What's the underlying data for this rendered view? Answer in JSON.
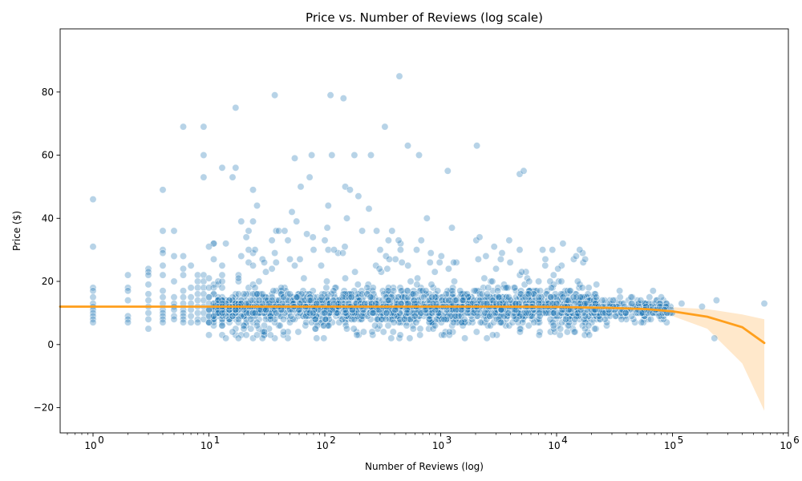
{
  "chart_data": {
    "type": "scatter",
    "title": "Price vs. Number of Reviews (log scale)",
    "xlabel": "Number of Reviews (log)",
    "ylabel": "Price ($)",
    "x_scale": "log",
    "xlim": [
      0.52,
      1000000
    ],
    "ylim": [
      -28,
      100
    ],
    "x_ticks": [
      {
        "value": 1,
        "base": "10",
        "exp": "0"
      },
      {
        "value": 10,
        "base": "10",
        "exp": "1"
      },
      {
        "value": 100,
        "base": "10",
        "exp": "2"
      },
      {
        "value": 1000,
        "base": "10",
        "exp": "3"
      },
      {
        "value": 10000,
        "base": "10",
        "exp": "4"
      },
      {
        "value": 100000,
        "base": "10",
        "exp": "5"
      },
      {
        "value": 1000000,
        "base": "10",
        "exp": "6"
      }
    ],
    "y_ticks": [
      {
        "value": -20,
        "label": "−20"
      },
      {
        "value": 0,
        "label": "0"
      },
      {
        "value": 20,
        "label": "20"
      },
      {
        "value": 40,
        "label": "40"
      },
      {
        "value": 60,
        "label": "60"
      },
      {
        "value": 80,
        "label": "80"
      }
    ],
    "grid": false,
    "legend": "none",
    "colors": {
      "points": "#1f77b4",
      "fit_line": "#ff9f1c",
      "ci_band": "#ffe4c2"
    },
    "points": [
      [
        1,
        46
      ],
      [
        1,
        31
      ],
      [
        1,
        18
      ],
      [
        1,
        17
      ],
      [
        1,
        15
      ],
      [
        1,
        13
      ],
      [
        1,
        12
      ],
      [
        1,
        11
      ],
      [
        1,
        10
      ],
      [
        1,
        9
      ],
      [
        1,
        8
      ],
      [
        1,
        7
      ],
      [
        2,
        22
      ],
      [
        2,
        18
      ],
      [
        2,
        17
      ],
      [
        2,
        14
      ],
      [
        2,
        9
      ],
      [
        2,
        8
      ],
      [
        2,
        7
      ],
      [
        3,
        24
      ],
      [
        3,
        23
      ],
      [
        3,
        22
      ],
      [
        3,
        19
      ],
      [
        3,
        16
      ],
      [
        3,
        14
      ],
      [
        3,
        12
      ],
      [
        3,
        10
      ],
      [
        3,
        8
      ],
      [
        3,
        5
      ],
      [
        4,
        49
      ],
      [
        4,
        36
      ],
      [
        4,
        30
      ],
      [
        4,
        29
      ],
      [
        4,
        25
      ],
      [
        4,
        22
      ],
      [
        4,
        17
      ],
      [
        4,
        15
      ],
      [
        4,
        13
      ],
      [
        4,
        11
      ],
      [
        4,
        10
      ],
      [
        4,
        9
      ],
      [
        4,
        8
      ],
      [
        4,
        7
      ],
      [
        5,
        36
      ],
      [
        5,
        28
      ],
      [
        5,
        20
      ],
      [
        5,
        15
      ],
      [
        5,
        13
      ],
      [
        5,
        12
      ],
      [
        5,
        11
      ],
      [
        5,
        9
      ],
      [
        5,
        8
      ],
      [
        6,
        69
      ],
      [
        6,
        28
      ],
      [
        6,
        24
      ],
      [
        6,
        22
      ],
      [
        6,
        17
      ],
      [
        6,
        15
      ],
      [
        6,
        13
      ],
      [
        6,
        11
      ],
      [
        6,
        10
      ],
      [
        6,
        9
      ],
      [
        6,
        8
      ],
      [
        6,
        7
      ],
      [
        7,
        25
      ],
      [
        7,
        18
      ],
      [
        7,
        15
      ],
      [
        7,
        13
      ],
      [
        7,
        11
      ],
      [
        7,
        9
      ],
      [
        7,
        7
      ],
      [
        8,
        22
      ],
      [
        8,
        20
      ],
      [
        8,
        18
      ],
      [
        8,
        16
      ],
      [
        8,
        14
      ],
      [
        8,
        12
      ],
      [
        8,
        10
      ],
      [
        8,
        8
      ],
      [
        8,
        7
      ],
      [
        9,
        69
      ],
      [
        9,
        60
      ],
      [
        9,
        53
      ],
      [
        9,
        22
      ],
      [
        9,
        20
      ],
      [
        9,
        18
      ],
      [
        9,
        16
      ],
      [
        9,
        14
      ],
      [
        9,
        12
      ],
      [
        9,
        10
      ],
      [
        9,
        8
      ],
      [
        10,
        31
      ],
      [
        10,
        21
      ],
      [
        10,
        18
      ],
      [
        10,
        15
      ],
      [
        10,
        13
      ],
      [
        10,
        11
      ],
      [
        10,
        9
      ],
      [
        10,
        7
      ],
      [
        13,
        56
      ],
      [
        13,
        22
      ],
      [
        13,
        6
      ],
      [
        14,
        2
      ],
      [
        16,
        53
      ],
      [
        17,
        56
      ],
      [
        17,
        75
      ],
      [
        19,
        39
      ],
      [
        19,
        28
      ],
      [
        20,
        5
      ],
      [
        22,
        36
      ],
      [
        22,
        30
      ],
      [
        24,
        49
      ],
      [
        24,
        39
      ],
      [
        26,
        44
      ],
      [
        29,
        27
      ],
      [
        30,
        26
      ],
      [
        35,
        24
      ],
      [
        37,
        79
      ],
      [
        38,
        36
      ],
      [
        40,
        36
      ],
      [
        45,
        36
      ],
      [
        50,
        27
      ],
      [
        52,
        42
      ],
      [
        55,
        59
      ],
      [
        57,
        39
      ],
      [
        62,
        50
      ],
      [
        66,
        21
      ],
      [
        70,
        35
      ],
      [
        74,
        53
      ],
      [
        77,
        60
      ],
      [
        79,
        34
      ],
      [
        85,
        2
      ],
      [
        100,
        33
      ],
      [
        105,
        37
      ],
      [
        107,
        44
      ],
      [
        112,
        79
      ],
      [
        115,
        60
      ],
      [
        120,
        30
      ],
      [
        145,
        78
      ],
      [
        150,
        50
      ],
      [
        155,
        40
      ],
      [
        165,
        49
      ],
      [
        180,
        60
      ],
      [
        195,
        47
      ],
      [
        210,
        36
      ],
      [
        240,
        43
      ],
      [
        250,
        60
      ],
      [
        280,
        36
      ],
      [
        300,
        30
      ],
      [
        330,
        69
      ],
      [
        360,
        27
      ],
      [
        380,
        36
      ],
      [
        440,
        85
      ],
      [
        450,
        30
      ],
      [
        520,
        63
      ],
      [
        620,
        30
      ],
      [
        650,
        60
      ],
      [
        680,
        33
      ],
      [
        760,
        40
      ],
      [
        1150,
        55
      ],
      [
        1250,
        37
      ],
      [
        2050,
        63
      ],
      [
        3000,
        24
      ],
      [
        3300,
        27
      ],
      [
        3900,
        33
      ],
      [
        4800,
        54
      ],
      [
        5200,
        55
      ],
      [
        5800,
        20
      ],
      [
        7000,
        20
      ],
      [
        8000,
        27
      ],
      [
        9000,
        18
      ],
      [
        11000,
        20
      ],
      [
        13000,
        17
      ],
      [
        16000,
        15
      ],
      [
        22000,
        15
      ],
      [
        35000,
        17
      ],
      [
        44000,
        15
      ],
      [
        54000,
        7
      ],
      [
        68000,
        17
      ],
      [
        80000,
        15
      ],
      [
        90000,
        10
      ],
      [
        120000,
        13
      ],
      [
        180000,
        12
      ],
      [
        230000,
        2
      ],
      [
        240000,
        14
      ],
      [
        620000,
        13
      ]
    ],
    "fit_x": [
      0.52,
      1,
      3,
      10,
      30,
      100,
      300,
      1000,
      3000,
      10000,
      30000,
      60000,
      100000,
      200000,
      400000,
      620000
    ],
    "fit_y": [
      12,
      12,
      12,
      12,
      12,
      12,
      12,
      12,
      12,
      11.9,
      11.6,
      11.2,
      10.5,
      8.8,
      5.5,
      0.5
    ],
    "ci_lower": [
      11.6,
      11.7,
      11.8,
      11.8,
      11.8,
      11.9,
      11.9,
      11.9,
      11.8,
      11.6,
      11.1,
      10.2,
      9,
      5,
      -6,
      -21
    ],
    "ci_upper": [
      12.4,
      12.3,
      12.2,
      12.2,
      12.2,
      12.1,
      12.1,
      12.1,
      12.2,
      12.2,
      12.1,
      12,
      11.8,
      11.2,
      9.5,
      8
    ]
  }
}
